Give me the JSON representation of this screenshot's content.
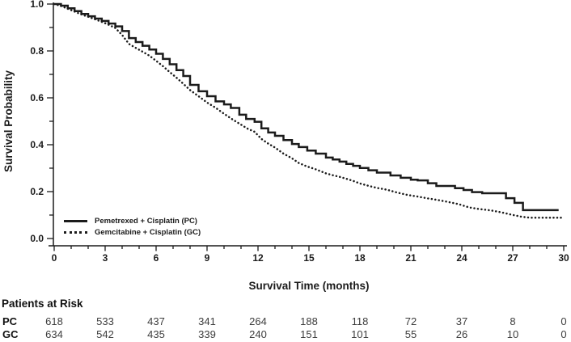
{
  "chart_data": {
    "type": "line",
    "subtype": "kaplan-meier-survival-curves",
    "title": "",
    "xlabel": "Survival Time (months)",
    "ylabel": "Survival Probability",
    "xlim": [
      0,
      30
    ],
    "ylim": [
      0.0,
      1.0
    ],
    "x_ticks": [
      0,
      3,
      6,
      9,
      12,
      15,
      18,
      21,
      24,
      27,
      30
    ],
    "x_tick_labels": [
      "0",
      "3",
      "6",
      "9",
      "12",
      "15",
      "18",
      "21",
      "24",
      "27",
      "30"
    ],
    "x_minor_step": 1,
    "y_ticks": [
      0.0,
      0.2,
      0.4,
      0.6,
      0.8,
      1.0
    ],
    "y_tick_labels": [
      "0.0",
      "0.2",
      "0.4",
      "0.6",
      "0.8",
      "1.0"
    ],
    "y_minor_step": 0.1,
    "grid": false,
    "legend_position": "lower-left-inside",
    "ink_color": "#1b1b1b",
    "series": [
      {
        "name": "Pemetrexed + Cisplatin (PC)",
        "line_style": "solid",
        "points": [
          [
            0,
            1.0
          ],
          [
            0.4,
            0.993
          ],
          [
            0.8,
            0.982
          ],
          [
            1.2,
            0.97
          ],
          [
            1.6,
            0.958
          ],
          [
            2,
            0.948
          ],
          [
            2.4,
            0.938
          ],
          [
            2.8,
            0.928
          ],
          [
            3.2,
            0.917
          ],
          [
            3.6,
            0.905
          ],
          [
            4,
            0.885
          ],
          [
            4.4,
            0.855
          ],
          [
            4.8,
            0.838
          ],
          [
            5.2,
            0.822
          ],
          [
            5.6,
            0.806
          ],
          [
            6,
            0.788
          ],
          [
            6.4,
            0.766
          ],
          [
            6.8,
            0.743
          ],
          [
            7.2,
            0.718
          ],
          [
            7.6,
            0.693
          ],
          [
            8,
            0.655
          ],
          [
            8.5,
            0.628
          ],
          [
            9,
            0.607
          ],
          [
            9.5,
            0.585
          ],
          [
            10,
            0.572
          ],
          [
            10.4,
            0.557
          ],
          [
            10.9,
            0.528
          ],
          [
            11.3,
            0.51
          ],
          [
            11.8,
            0.498
          ],
          [
            12.2,
            0.47
          ],
          [
            12.6,
            0.452
          ],
          [
            13,
            0.438
          ],
          [
            13.5,
            0.42
          ],
          [
            14,
            0.403
          ],
          [
            14.4,
            0.39
          ],
          [
            14.9,
            0.375
          ],
          [
            15.4,
            0.362
          ],
          [
            16,
            0.345
          ],
          [
            16.4,
            0.337
          ],
          [
            16.8,
            0.328
          ],
          [
            17.2,
            0.318
          ],
          [
            17.6,
            0.31
          ],
          [
            18,
            0.301
          ],
          [
            18.5,
            0.291
          ],
          [
            19,
            0.281
          ],
          [
            19.8,
            0.269
          ],
          [
            20.4,
            0.259
          ],
          [
            21,
            0.251
          ],
          [
            21.4,
            0.248
          ],
          [
            22,
            0.236
          ],
          [
            22.5,
            0.224
          ],
          [
            23.6,
            0.215
          ],
          [
            24.1,
            0.207
          ],
          [
            24.6,
            0.198
          ],
          [
            25.2,
            0.193
          ],
          [
            26.6,
            0.172
          ],
          [
            27.1,
            0.152
          ],
          [
            27.6,
            0.121
          ],
          [
            29.7,
            0.121
          ]
        ]
      },
      {
        "name": "Gemcitabine + Cisplatin (GC)",
        "line_style": "dotted",
        "points": [
          [
            0,
            1.0
          ],
          [
            0.4,
            0.992
          ],
          [
            0.8,
            0.98
          ],
          [
            1.2,
            0.968
          ],
          [
            1.6,
            0.956
          ],
          [
            2,
            0.946
          ],
          [
            2.4,
            0.935
          ],
          [
            2.8,
            0.924
          ],
          [
            3.2,
            0.912
          ],
          [
            3.6,
            0.898
          ],
          [
            4,
            0.868
          ],
          [
            4.4,
            0.83
          ],
          [
            4.8,
            0.813
          ],
          [
            5.2,
            0.797
          ],
          [
            5.6,
            0.78
          ],
          [
            6,
            0.758
          ],
          [
            6.4,
            0.735
          ],
          [
            6.8,
            0.71
          ],
          [
            7.2,
            0.686
          ],
          [
            7.6,
            0.66
          ],
          [
            8,
            0.633
          ],
          [
            8.5,
            0.607
          ],
          [
            9,
            0.58
          ],
          [
            9.5,
            0.558
          ],
          [
            10,
            0.532
          ],
          [
            10.5,
            0.508
          ],
          [
            10.9,
            0.49
          ],
          [
            11.4,
            0.468
          ],
          [
            11.8,
            0.455
          ],
          [
            12.2,
            0.425
          ],
          [
            12.6,
            0.405
          ],
          [
            13,
            0.388
          ],
          [
            13.5,
            0.362
          ],
          [
            14,
            0.342
          ],
          [
            14.4,
            0.322
          ],
          [
            14.9,
            0.307
          ],
          [
            15.4,
            0.295
          ],
          [
            16,
            0.278
          ],
          [
            16.4,
            0.27
          ],
          [
            16.8,
            0.263
          ],
          [
            17.2,
            0.255
          ],
          [
            17.6,
            0.246
          ],
          [
            18,
            0.235
          ],
          [
            18.5,
            0.225
          ],
          [
            19,
            0.216
          ],
          [
            19.6,
            0.208
          ],
          [
            20.2,
            0.196
          ],
          [
            20.8,
            0.186
          ],
          [
            21.4,
            0.179
          ],
          [
            22,
            0.171
          ],
          [
            22.6,
            0.164
          ],
          [
            23.2,
            0.156
          ],
          [
            23.8,
            0.147
          ],
          [
            24.4,
            0.133
          ],
          [
            25,
            0.126
          ],
          [
            25.7,
            0.12
          ],
          [
            26.3,
            0.112
          ],
          [
            26.9,
            0.102
          ],
          [
            27.5,
            0.093
          ],
          [
            28,
            0.089
          ],
          [
            30,
            0.089
          ]
        ]
      }
    ]
  },
  "risk_table": {
    "title": "Patients at Risk",
    "times": [
      0,
      3,
      6,
      9,
      12,
      15,
      18,
      21,
      24,
      27,
      30
    ],
    "value_color": "#3d3d3d",
    "rows": [
      {
        "label": "PC",
        "values": [
          "618",
          "533",
          "437",
          "341",
          "264",
          "188",
          "118",
          "72",
          "37",
          "8",
          "0"
        ]
      },
      {
        "label": "GC",
        "values": [
          "634",
          "542",
          "435",
          "339",
          "240",
          "151",
          "101",
          "55",
          "26",
          "10",
          "0"
        ]
      }
    ]
  }
}
